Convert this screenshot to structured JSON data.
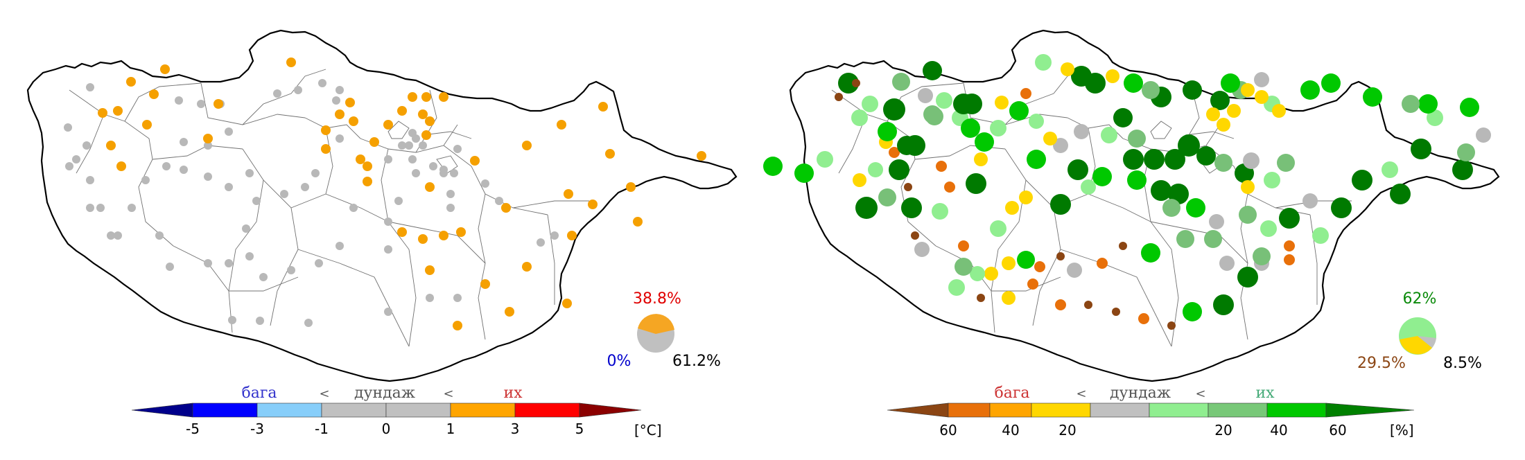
{
  "maps": [
    {
      "name": "temperature",
      "pie": {
        "high_pct": "38.8%",
        "low_pct": "0%",
        "normal_pct": "61.2%",
        "high_color": "#f39c12",
        "normal_color": "#c0c0c0"
      },
      "legend": {
        "low_word": "бага",
        "mid_word": "дундаж",
        "high_word": "их",
        "sep1": "<",
        "sep2": "<",
        "ticks": [
          "-5",
          "-3",
          "-1",
          "0",
          "1",
          "3",
          "5"
        ],
        "unit": "[°C]",
        "colors": [
          "#00008b",
          "#0000ff",
          "#87cefa",
          "#c0c0c0",
          "#c0c0c0",
          "#ffa500",
          "#ff0000",
          "#8b0000"
        ]
      }
    },
    {
      "name": "precipitation",
      "pie": {
        "high_pct": "62%",
        "low_pct": "29.5%",
        "normal_pct": "8.5%",
        "high_color": "#90ee90",
        "low_color": "#ffd700",
        "normal_color": "#c0c0c0"
      },
      "legend": {
        "low_word": "бага",
        "mid_word": "дундаж",
        "high_word": "их",
        "sep1": "<",
        "sep2": "<",
        "ticks_low": [
          "60",
          "40",
          "20"
        ],
        "ticks_high": [
          "20",
          "40",
          "60"
        ],
        "unit": "[%]",
        "colors": [
          "#8b4513",
          "#e8700a",
          "#ffa500",
          "#ffd700",
          "#c0c0c0",
          "#90ee90",
          "#78c878",
          "#00c800",
          "#008000"
        ]
      }
    }
  ]
}
